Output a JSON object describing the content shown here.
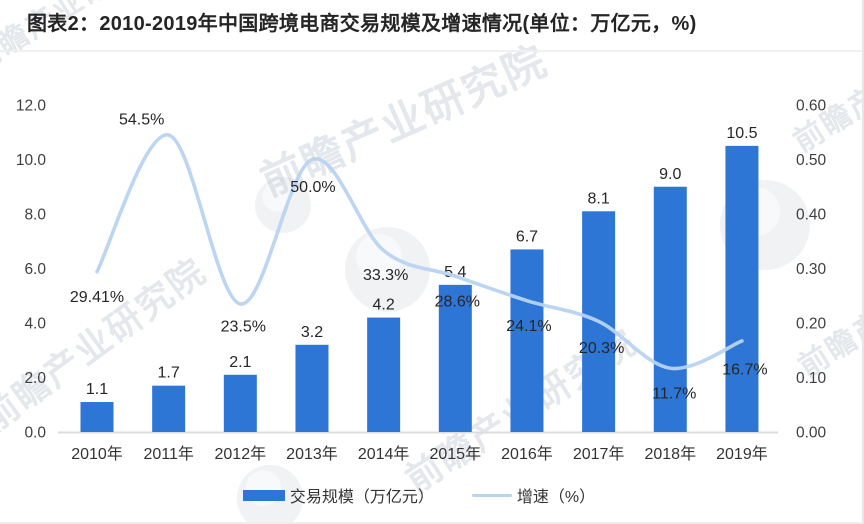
{
  "title": "图表2：2010-2019年中国跨境电商交易规模及增速情况(单位：万亿元，%)",
  "watermark": {
    "text": "前瞻产业研究院"
  },
  "colors": {
    "bar": "#2E76D5",
    "line": "#B7D3F1",
    "label_text": "#262626",
    "tick_text": "#3f3f3f",
    "baseline": "#dcdcdc"
  },
  "chart_data": {
    "type": "combo",
    "categories": [
      "2010年",
      "2011年",
      "2012年",
      "2013年",
      "2014年",
      "2015年",
      "2016年",
      "2017年",
      "2018年",
      "2019年"
    ],
    "series": [
      {
        "name": "交易规模（万亿元）",
        "type": "bar",
        "axis": "left",
        "color": "#2E76D5",
        "values": [
          1.1,
          1.7,
          2.1,
          3.2,
          4.2,
          5.4,
          6.7,
          8.1,
          9.0,
          10.5
        ],
        "labels": [
          "1.1",
          "1.7",
          "2.1",
          "3.2",
          "4.2",
          "5.4",
          "6.7",
          "8.1",
          "9.0",
          "10.5"
        ]
      },
      {
        "name": "增速（%）",
        "type": "line",
        "axis": "right",
        "color": "#B7D3F1",
        "values": [
          0.2941,
          0.545,
          0.235,
          0.5,
          0.333,
          0.286,
          0.241,
          0.203,
          0.117,
          0.167
        ],
        "labels": [
          "29.41%",
          "54.5%",
          "23.5%",
          "50.0%",
          "33.3%",
          "28.6%",
          "24.1%",
          "20.3%",
          "11.7%",
          "16.7%"
        ]
      }
    ],
    "left_axis": {
      "min": 0,
      "max": 12,
      "ticks": [
        "12.0",
        "10.0",
        "8.0",
        "6.0",
        "4.0",
        "2.0",
        "0.0"
      ]
    },
    "right_axis": {
      "min": 0,
      "max": 0.6,
      "ticks": [
        "0.60",
        "0.50",
        "0.40",
        "0.30",
        "0.20",
        "0.10",
        "0.00"
      ]
    },
    "grid": false,
    "legend_position": "bottom"
  }
}
